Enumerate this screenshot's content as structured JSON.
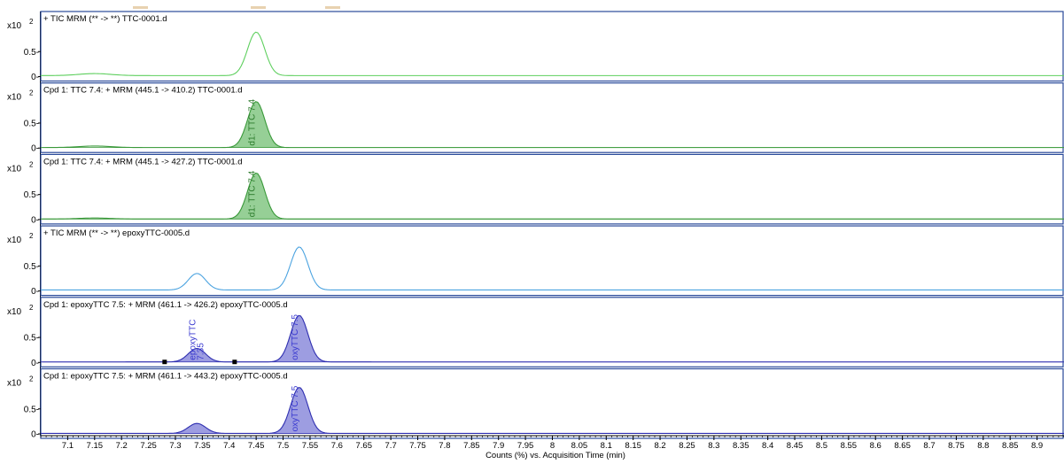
{
  "top_tabs": [
    {
      "color": "#e8d2b0"
    },
    {
      "color": "#e8d2b0"
    },
    {
      "color": "#e8d2b0"
    }
  ],
  "chart_data": {
    "type": "line",
    "x_axis": {
      "label": "Counts (%) vs. Acquisition Time (min)",
      "range": [
        7.05,
        8.95
      ],
      "ticks": [
        7.1,
        7.15,
        7.2,
        7.25,
        7.3,
        7.35,
        7.4,
        7.45,
        7.5,
        7.55,
        7.6,
        7.65,
        7.7,
        7.75,
        7.8,
        7.85,
        7.9,
        7.95,
        8,
        8.05,
        8.1,
        8.15,
        8.2,
        8.25,
        8.3,
        8.35,
        8.4,
        8.45,
        8.5,
        8.55,
        8.6,
        8.65,
        8.7,
        8.75,
        8.8,
        8.85,
        8.9
      ],
      "tick_labels": [
        "7.1",
        "7.15",
        "7.2",
        "7.25",
        "7.3",
        "7.35",
        "7.4",
        "7.45",
        "7.5",
        "7.55",
        "7.6",
        "7.65",
        "7.7",
        "7.75",
        "7.8",
        "7.85",
        "7.9",
        "7.95",
        "8",
        "8.05",
        "8.1",
        "8.15",
        "8.2",
        "8.25",
        "8.3",
        "8.35",
        "8.4",
        "8.45",
        "8.5",
        "8.55",
        "8.6",
        "8.65",
        "8.7",
        "8.75",
        "8.8",
        "8.85",
        "8.9"
      ]
    },
    "y_multiplier": "x10",
    "y_exponent": "2",
    "y_ticks": [
      0,
      0.5
    ],
    "y_tick_labels": [
      "0-",
      "0.5-"
    ],
    "panels": [
      {
        "title": "+ TIC MRM (** -> **) TTC-0001.d",
        "ylim": [
          0,
          1.0
        ],
        "color": "#5ecf5e",
        "filled": false,
        "baseline": 0.02,
        "peaks": [
          {
            "rt": 7.45,
            "height": 0.87,
            "sigma": 0.016
          },
          {
            "rt": 7.15,
            "height": 0.04,
            "sigma": 0.03
          }
        ],
        "labels": [],
        "markers": []
      },
      {
        "title": "Cpd 1: TTC 7.4: + MRM (445.1 -> 410.2) TTC-0001.d",
        "ylim": [
          0,
          1.0
        ],
        "color": "#3a993a",
        "fill": "#84c784",
        "filled": true,
        "baseline": 0.01,
        "peaks": [
          {
            "rt": 7.45,
            "height": 0.92,
            "sigma": 0.016
          },
          {
            "rt": 7.15,
            "height": 0.03,
            "sigma": 0.03
          }
        ],
        "labels": [
          {
            "text": "d1: TTC 7.4",
            "rt": 7.447,
            "color": "#2a7a2a"
          }
        ],
        "markers": []
      },
      {
        "title": "Cpd 1: TTC 7.4: + MRM (445.1 -> 427.2) TTC-0001.d",
        "ylim": [
          0,
          1.0
        ],
        "color": "#3a993a",
        "fill": "#84c784",
        "filled": true,
        "baseline": 0.01,
        "peaks": [
          {
            "rt": 7.45,
            "height": 0.92,
            "sigma": 0.016
          },
          {
            "rt": 7.15,
            "height": 0.02,
            "sigma": 0.03
          }
        ],
        "labels": [
          {
            "text": "d1: TTC 7.4",
            "rt": 7.447,
            "color": "#2a7a2a"
          }
        ],
        "markers": []
      },
      {
        "title": "+ TIC MRM (** -> **) epoxyTTC-0005.d",
        "ylim": [
          0,
          1.0
        ],
        "color": "#4ba3e0",
        "filled": false,
        "baseline": 0.02,
        "peaks": [
          {
            "rt": 7.34,
            "height": 0.33,
            "sigma": 0.016
          },
          {
            "rt": 7.53,
            "height": 0.86,
            "sigma": 0.016
          }
        ],
        "labels": [],
        "markers": []
      },
      {
        "title": "Cpd 1: epoxyTTC 7.5: + MRM (461.1 -> 426.2) epoxyTTC-0005.d",
        "ylim": [
          0,
          1.0
        ],
        "color": "#2f2fb0",
        "fill": "#8c8cdc",
        "filled": true,
        "baseline": 0.01,
        "peaks": [
          {
            "rt": 7.34,
            "height": 0.27,
            "sigma": 0.016
          },
          {
            "rt": 7.53,
            "height": 0.93,
            "sigma": 0.016
          }
        ],
        "labels": [
          {
            "text": "epoxyTTC",
            "rt": 7.337,
            "color": "#3a3ad0"
          },
          {
            "text": "7.35",
            "rt": 7.352,
            "color": "#3a3ad0"
          },
          {
            "text": "oxyTTC 7.5",
            "rt": 7.527,
            "color": "#3a3ad0"
          }
        ],
        "markers": [
          7.28,
          7.41
        ]
      },
      {
        "title": "Cpd 1: epoxyTTC 7.5: + MRM (461.1 -> 443.2) epoxyTTC-0005.d",
        "ylim": [
          0,
          1.0
        ],
        "color": "#2f2fb0",
        "fill": "#8c8cdc",
        "filled": true,
        "baseline": 0.01,
        "peaks": [
          {
            "rt": 7.34,
            "height": 0.2,
            "sigma": 0.016
          },
          {
            "rt": 7.53,
            "height": 0.92,
            "sigma": 0.016
          }
        ],
        "labels": [
          {
            "text": "oxyTTC 7.5",
            "rt": 7.527,
            "color": "#3a3ad0"
          }
        ],
        "markers": []
      }
    ]
  }
}
